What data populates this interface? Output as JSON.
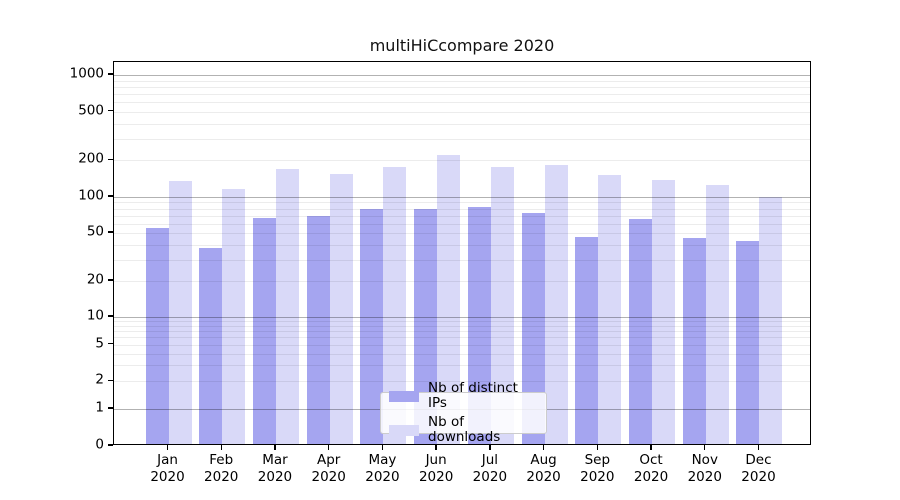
{
  "title": "multiHiCcompare 2020",
  "colors": {
    "ips_bar": "#a5a5f0",
    "downloads_bar": "#d9d9f8",
    "grid_major": "rgba(0,0,0,0.30)",
    "grid_minor": "rgba(0,0,0,0.075)",
    "axis": "#000000",
    "legend_border": "#cccccc"
  },
  "legend": {
    "items": [
      {
        "label": "Nb of distinct IPs"
      },
      {
        "label": "Nb of downloads"
      }
    ]
  },
  "chart_data": {
    "type": "bar",
    "title": "multiHiCcompare 2020",
    "categories": [
      "Jan 2020",
      "Feb 2020",
      "Mar 2020",
      "Apr 2020",
      "May 2020",
      "Jun 2020",
      "Jul 2020",
      "Aug 2020",
      "Sep 2020",
      "Oct 2020",
      "Nov 2020",
      "Dec 2020"
    ],
    "series": [
      {
        "name": "Nb of distinct IPs",
        "color": "#a5a5f0",
        "values": [
          53,
          36,
          64,
          67,
          76,
          77,
          80,
          71,
          45,
          63,
          44,
          41
        ]
      },
      {
        "name": "Nb of downloads",
        "color": "#d9d9f8",
        "values": [
          130,
          111,
          163,
          149,
          170,
          214,
          170,
          177,
          145,
          134,
          120,
          97
        ]
      }
    ],
    "xlabel": "",
    "ylabel": "",
    "yscale": "log-with-zero",
    "ylim": [
      0,
      1280
    ],
    "yticks": [
      1000,
      500,
      200,
      100,
      50,
      20,
      10,
      5,
      2,
      1,
      0
    ],
    "yticks_major_grid": [
      1,
      10,
      100,
      1000
    ],
    "yticks_minor_grid": [
      2,
      3,
      4,
      5,
      6,
      7,
      8,
      9,
      20,
      30,
      40,
      50,
      60,
      70,
      80,
      90,
      200,
      300,
      400,
      500,
      600,
      700,
      800,
      900
    ],
    "grid": "horizontal, major+minor, drawn over bars",
    "legend_position": "lower center"
  }
}
